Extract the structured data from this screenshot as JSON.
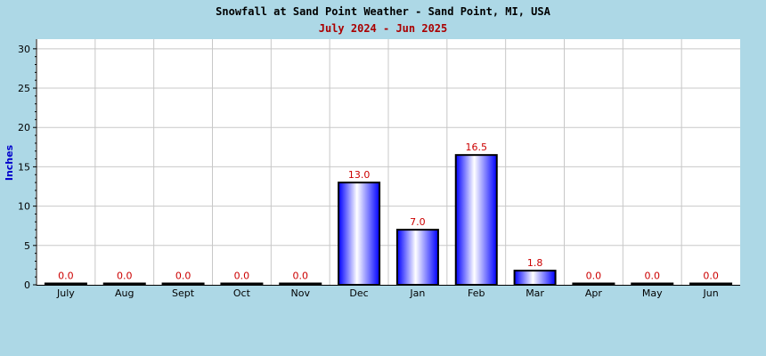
{
  "chart_data": {
    "type": "bar",
    "title": "Snowfall at Sand Point Weather - Sand Point, MI, USA",
    "subtitle": "July 2024 - Jun 2025",
    "xlabel": "",
    "ylabel": "Inches",
    "categories": [
      "July",
      "Aug",
      "Sept",
      "Oct",
      "Nov",
      "Dec",
      "Jan",
      "Feb",
      "Mar",
      "Apr",
      "May",
      "Jun"
    ],
    "values": [
      0.0,
      0.0,
      0.0,
      0.0,
      0.0,
      13.0,
      7.0,
      16.5,
      1.8,
      0.0,
      0.0,
      0.0
    ],
    "value_labels": [
      "0.0",
      "0.0",
      "0.0",
      "0.0",
      "0.0",
      "13.0",
      "7.0",
      "16.5",
      "1.8",
      "0.0",
      "0.0",
      "0.0"
    ],
    "ylim": [
      0,
      31
    ],
    "yticks": [
      0,
      5,
      10,
      15,
      20,
      25,
      30
    ],
    "ytick_labels": [
      "0",
      "5",
      "10",
      "15",
      "20",
      "25",
      "30"
    ],
    "grid": true,
    "legend": "none",
    "colors": {
      "background": "#ADD8E6",
      "plot_background": "#FFFFFF",
      "bar_edge": "#0000FF",
      "bar_highlight": "#FFFFFF",
      "bar_outline": "#000000",
      "value_label": "#CC0000",
      "title": "#000000",
      "subtitle": "#AA0000",
      "ylabel": "#0000CC",
      "grid": "#C8C8C8"
    }
  }
}
